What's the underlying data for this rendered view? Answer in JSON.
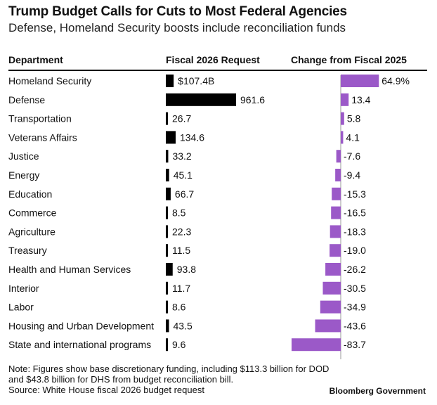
{
  "chart_data": {
    "type": "table",
    "title": "Trump Budget Calls for Cuts to Most Federal Agencies",
    "subtitle": "Defense, Homeland Security boosts include reconciliation funds",
    "columns": [
      "Department",
      "Fiscal 2026 Request",
      "Change from Fiscal 2025"
    ],
    "departments": [
      "Homeland Security",
      "Defense",
      "Transportation",
      "Veterans Affairs",
      "Justice",
      "Energy",
      "Education",
      "Commerce",
      "Agriculture",
      "Treasury",
      "Health and Human Services",
      "Interior",
      "Labor",
      "Housing and Urban Development",
      "State and international programs"
    ],
    "request_billions": [
      107.4,
      961.6,
      26.7,
      134.6,
      33.2,
      45.1,
      66.7,
      8.5,
      22.3,
      11.5,
      93.8,
      11.7,
      8.6,
      43.5,
      9.6
    ],
    "request_labels": [
      "$107.4B",
      "961.6",
      "26.7",
      "134.6",
      "33.2",
      "45.1",
      "66.7",
      "8.5",
      "22.3",
      "11.5",
      "93.8",
      "11.7",
      "8.6",
      "43.5",
      "9.6"
    ],
    "change_pct": [
      64.9,
      13.4,
      5.8,
      4.1,
      -7.6,
      -9.4,
      -15.3,
      -16.5,
      -18.3,
      -19.0,
      -26.2,
      -30.5,
      -34.9,
      -43.6,
      -83.7
    ],
    "change_labels": [
      "64.9%",
      "13.4",
      "5.8",
      "4.1",
      "-7.6",
      "-9.4",
      "-15.3",
      "-16.5",
      "-18.3",
      "-19.0",
      "-26.2",
      "-30.5",
      "-34.9",
      "-43.6",
      "-83.7"
    ],
    "request_color": "#000000",
    "change_color": "#9b59c8"
  },
  "footer": {
    "note_line1": "Note: Figures show base discretionary funding, including $113.3 billion for DOD",
    "note_line2": "and $43.8 billion for DHS from budget reconciliation bill.",
    "source": "Source: White House fiscal 2026 budget request",
    "brand": "Bloomberg Government"
  }
}
